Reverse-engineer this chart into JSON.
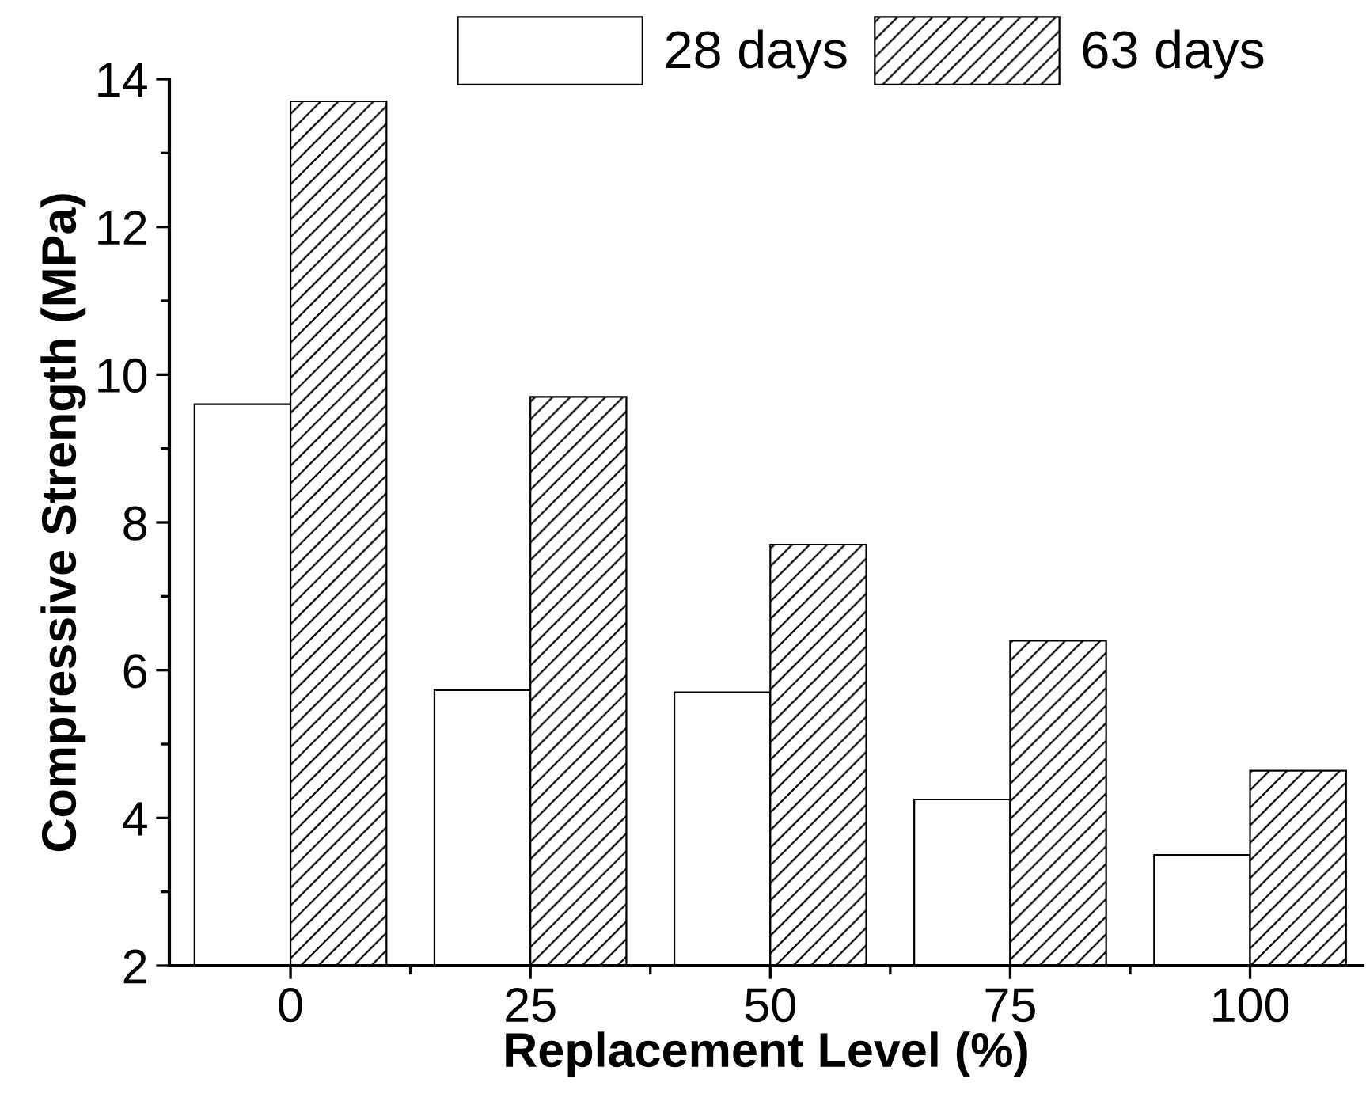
{
  "chart_data": {
    "type": "bar",
    "xlabel": "Replacement Level (%)",
    "ylabel": "Compressive Strength (MPa)",
    "categories": [
      "0",
      "25",
      "50",
      "75",
      "100"
    ],
    "series": [
      {
        "name": "28 days",
        "color": "#ffffff",
        "values": [
          9.6,
          5.73,
          5.7,
          4.25,
          3.5
        ]
      },
      {
        "name": "63 days",
        "color": "#000000",
        "values": [
          13.7,
          9.7,
          7.7,
          6.4,
          4.64
        ]
      }
    ],
    "ylim": [
      2,
      14
    ],
    "yticks": [
      2,
      4,
      6,
      8,
      10,
      12,
      14
    ],
    "grid": false,
    "legend": "top"
  }
}
